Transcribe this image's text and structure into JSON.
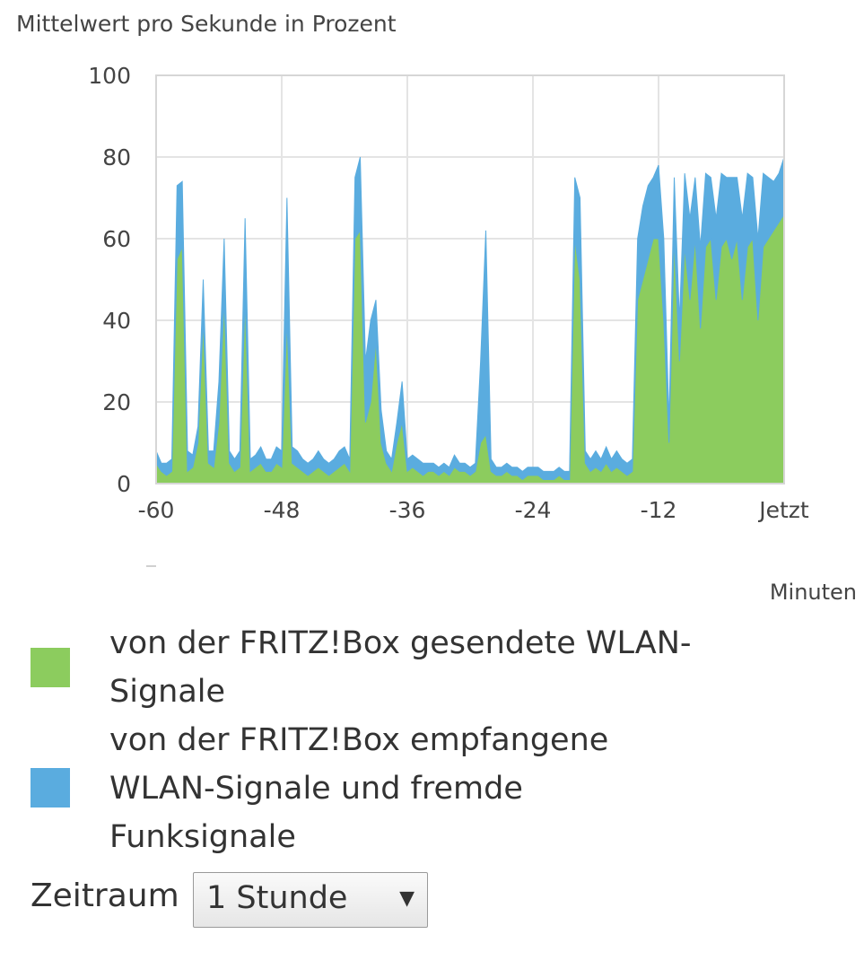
{
  "chart_data": {
    "type": "area",
    "ylabel": "Mittelwert pro Sekunde in Prozent",
    "xlabel": "Minuten",
    "xlim": [
      -60,
      0
    ],
    "ylim": [
      0,
      100
    ],
    "x_tick_labels": [
      "-60",
      "-48",
      "-36",
      "-24",
      "-12",
      "Jetzt"
    ],
    "x_tick_values": [
      -60,
      -48,
      -36,
      -24,
      -12,
      0
    ],
    "y_tick_labels": [
      "0",
      "20",
      "40",
      "60",
      "80",
      "100"
    ],
    "y_tick_values": [
      0,
      20,
      40,
      60,
      80,
      100
    ],
    "grid": true,
    "stacked": true,
    "x": [
      -60,
      -59.5,
      -59,
      -58.5,
      -58,
      -57.5,
      -57,
      -56.5,
      -56,
      -55.5,
      -55,
      -54.5,
      -54,
      -53.5,
      -53,
      -52.5,
      -52,
      -51.5,
      -51,
      -50.5,
      -50,
      -49.5,
      -49,
      -48.5,
      -48,
      -47.5,
      -47,
      -46.5,
      -46,
      -45.5,
      -45,
      -44.5,
      -44,
      -43.5,
      -43,
      -42.5,
      -42,
      -41.5,
      -41,
      -40.5,
      -40,
      -39.5,
      -39,
      -38.5,
      -38,
      -37.5,
      -37,
      -36.5,
      -36,
      -35.5,
      -35,
      -34.5,
      -34,
      -33.5,
      -33,
      -32.5,
      -32,
      -31.5,
      -31,
      -30.5,
      -30,
      -29.5,
      -29,
      -28.5,
      -28,
      -27.5,
      -27,
      -26.5,
      -26,
      -25.5,
      -25,
      -24.5,
      -24,
      -23.5,
      -23,
      -22.5,
      -22,
      -21.5,
      -21,
      -20.5,
      -20,
      -19.5,
      -19,
      -18.5,
      -18,
      -17.5,
      -17,
      -16.5,
      -16,
      -15.5,
      -15,
      -14.5,
      -14,
      -13.5,
      -13,
      -12.5,
      -12,
      -11.5,
      -11,
      -10.5,
      -10,
      -9.5,
      -9,
      -8.5,
      -8,
      -7.5,
      -7,
      -6.5,
      -6,
      -5.5,
      -5,
      -4.5,
      -4,
      -3.5,
      -3,
      -2.5,
      -2,
      -1.5,
      -1,
      -0.5,
      0
    ],
    "series": [
      {
        "name": "von der FRITZ!Box gesendete WLAN-Signale",
        "color": "#8ccc5e",
        "values": [
          5,
          3,
          2,
          3,
          55,
          58,
          3,
          4,
          10,
          40,
          5,
          4,
          15,
          45,
          5,
          3,
          4,
          45,
          3,
          4,
          5,
          3,
          3,
          5,
          4,
          40,
          5,
          4,
          3,
          2,
          3,
          4,
          3,
          2,
          3,
          4,
          5,
          3,
          60,
          62,
          15,
          20,
          35,
          10,
          5,
          3,
          10,
          15,
          3,
          4,
          3,
          2,
          3,
          3,
          2,
          3,
          2,
          4,
          3,
          3,
          2,
          3,
          10,
          12,
          3,
          2,
          2,
          3,
          2,
          2,
          1,
          2,
          2,
          2,
          1,
          1,
          1,
          2,
          1,
          1,
          60,
          50,
          5,
          3,
          4,
          3,
          5,
          3,
          4,
          3,
          2,
          3,
          45,
          50,
          55,
          60,
          60,
          40,
          10,
          60,
          30,
          58,
          45,
          60,
          38,
          58,
          60,
          45,
          58,
          60,
          55,
          60,
          45,
          58,
          60,
          40,
          58,
          60,
          62,
          64,
          66
        ]
      },
      {
        "name": "von der FRITZ!Box empfangene WLAN-Signale und fremde Funksignale",
        "color": "#5aacdf",
        "values": [
          3,
          2,
          3,
          3,
          18,
          16,
          5,
          3,
          4,
          10,
          3,
          4,
          10,
          15,
          3,
          3,
          4,
          20,
          3,
          3,
          4,
          3,
          3,
          4,
          4,
          30,
          4,
          4,
          3,
          3,
          3,
          4,
          3,
          3,
          3,
          4,
          4,
          3,
          15,
          18,
          15,
          20,
          10,
          8,
          3,
          3,
          5,
          10,
          3,
          3,
          3,
          3,
          2,
          2,
          2,
          2,
          2,
          3,
          2,
          2,
          2,
          2,
          20,
          50,
          3,
          2,
          2,
          2,
          2,
          2,
          2,
          2,
          2,
          2,
          2,
          2,
          2,
          2,
          2,
          2,
          15,
          20,
          3,
          3,
          4,
          3,
          4,
          3,
          4,
          3,
          3,
          3,
          15,
          18,
          18,
          15,
          18,
          20,
          5,
          15,
          10,
          18,
          20,
          15,
          20,
          18,
          15,
          20,
          18,
          15,
          20,
          15,
          20,
          18,
          15,
          20,
          18,
          15,
          12,
          12,
          14
        ]
      }
    ]
  },
  "legend": {
    "sent_label": "von der FRITZ!Box gesendete WLAN-Signale",
    "received_label": "von der FRITZ!Box empfangene WLAN-Signale und fremde Funksignale"
  },
  "timespan": {
    "label": "Zeitraum",
    "value": "1 Stunde",
    "arrow": "▼"
  }
}
